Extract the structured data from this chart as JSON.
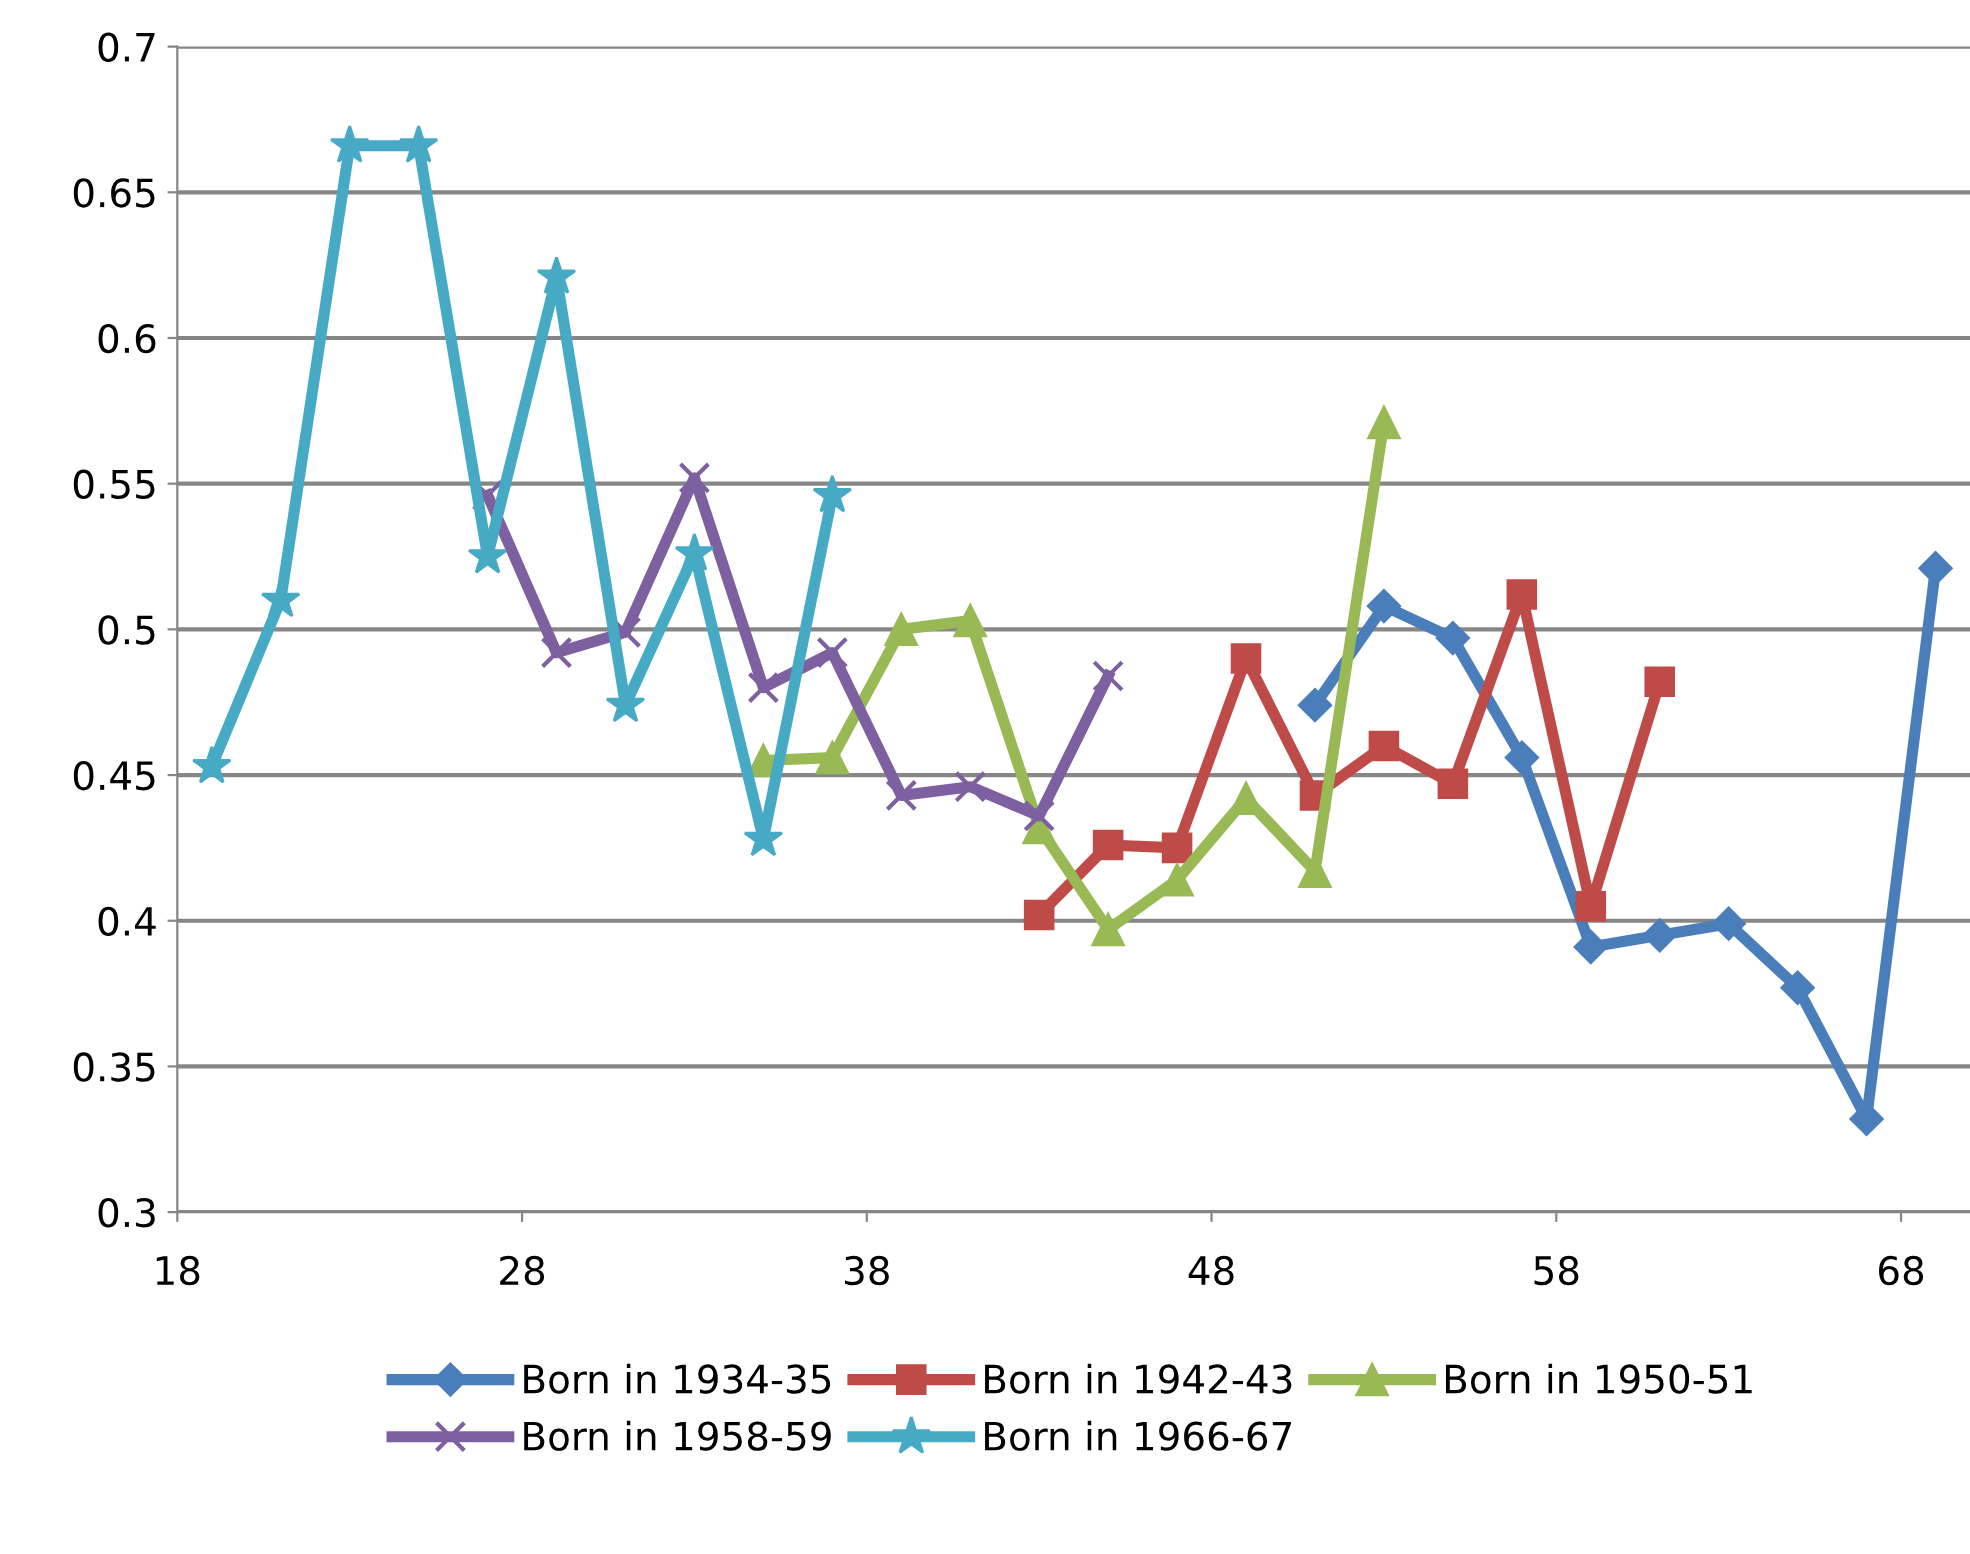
{
  "chart_data": {
    "type": "line",
    "xlim": [
      18,
      70
    ],
    "xticks": [
      18,
      28,
      38,
      48,
      58,
      68
    ],
    "ylim": [
      0.3,
      0.7
    ],
    "yticks": [
      0.3,
      0.35,
      0.4,
      0.45,
      0.5,
      0.55,
      0.6,
      0.65,
      0.7
    ],
    "grid": "y",
    "legend": "bottom",
    "line_style": "solid",
    "series": [
      {
        "name": "Born in 1934-35",
        "color": "#4a7ebb",
        "marker": "diamond",
        "x": [
          51,
          53,
          55,
          57,
          59,
          61,
          63,
          65,
          67,
          69
        ],
        "values": [
          0.474,
          0.508,
          0.497,
          0.456,
          0.391,
          0.395,
          0.399,
          0.377,
          0.332,
          0.521
        ]
      },
      {
        "name": "Born in 1942-43",
        "color": "#be4b48",
        "marker": "square",
        "x": [
          43,
          45,
          47,
          49,
          51,
          53,
          55,
          57,
          59,
          61
        ],
        "values": [
          0.402,
          0.426,
          0.425,
          0.49,
          0.443,
          0.46,
          0.447,
          0.512,
          0.405,
          0.482
        ]
      },
      {
        "name": "Born in 1950-51",
        "color": "#98b954",
        "marker": "triangle",
        "x": [
          35,
          37,
          39,
          41,
          43,
          45,
          47,
          49,
          51,
          53
        ],
        "values": [
          0.455,
          0.456,
          0.5,
          0.503,
          0.432,
          0.397,
          0.414,
          0.442,
          0.417,
          0.571
        ]
      },
      {
        "name": "Born in 1958-59",
        "color": "#7d60a0",
        "marker": "cross",
        "x": [
          27,
          29,
          31,
          33,
          35,
          37,
          39,
          41,
          43,
          45
        ],
        "values": [
          0.546,
          0.492,
          0.499,
          0.552,
          0.48,
          0.492,
          0.443,
          0.446,
          0.436,
          0.484
        ]
      },
      {
        "name": "Born in 1966-67",
        "color": "#46aac5",
        "marker": "star",
        "x": [
          19,
          21,
          23,
          25,
          27,
          29,
          31,
          33,
          35,
          37
        ],
        "values": [
          0.453,
          0.51,
          0.666,
          0.666,
          0.525,
          0.621,
          0.474,
          0.526,
          0.428,
          0.546
        ]
      }
    ]
  }
}
